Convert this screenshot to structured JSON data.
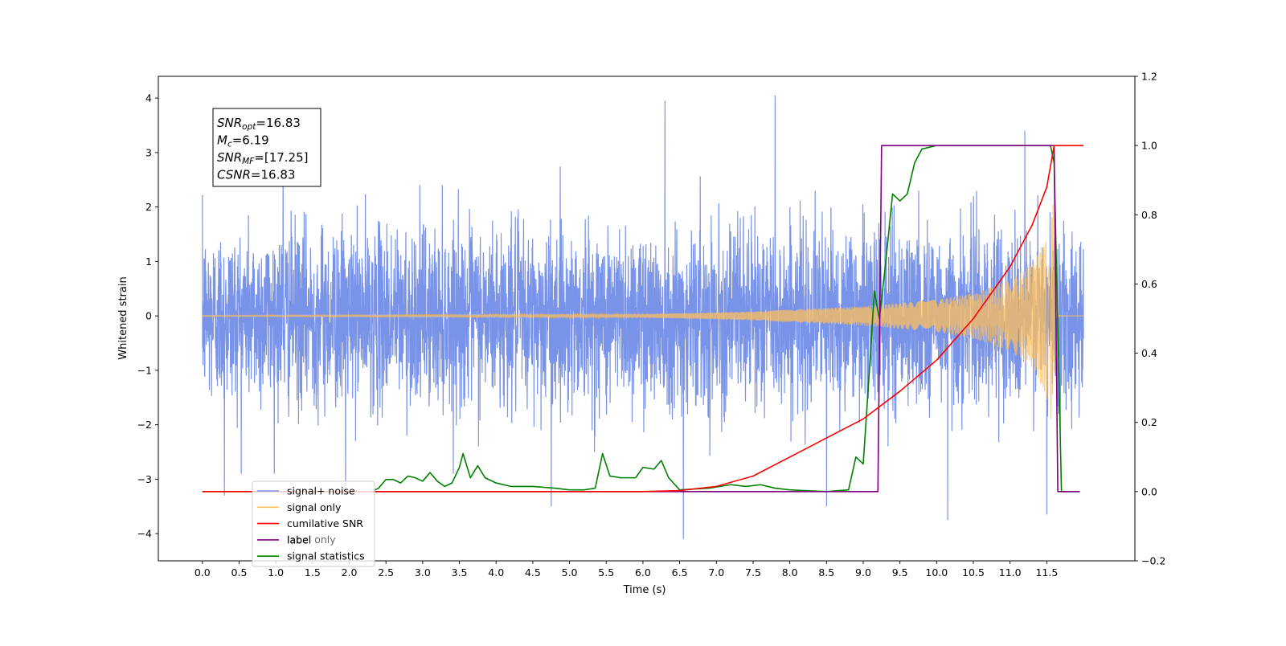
{
  "chart_data": {
    "type": "line",
    "xlabel": "Time (s)",
    "ylabel_left": "Whitened strain",
    "ylabel_right": "",
    "xlim": [
      -0.6,
      12.7
    ],
    "ylim_left": [
      -4.5,
      4.4
    ],
    "ylim_right": [
      -0.2,
      1.2
    ],
    "x_ticks": [
      0.0,
      0.5,
      1.0,
      1.5,
      2.0,
      2.5,
      3.0,
      3.5,
      4.0,
      4.5,
      5.0,
      5.5,
      6.0,
      6.5,
      7.0,
      7.5,
      8.0,
      8.5,
      9.0,
      9.5,
      10.0,
      10.5,
      11.0,
      11.5
    ],
    "x_tick_labels": [
      "0.0",
      "0.5",
      "1.0",
      "1.5",
      "2.0",
      "2.5",
      "3.0",
      "3.5",
      "4.0",
      "4.5",
      "5.0",
      "5.5",
      "6.0",
      "6.5",
      "7.0",
      "7.5",
      "8.0",
      "8.5",
      "9.0",
      "9.5",
      "10.0",
      "10.5",
      "11.0",
      "11.5"
    ],
    "y_left_ticks": [
      -4,
      -3,
      -2,
      -1,
      0,
      1,
      2,
      3,
      4
    ],
    "y_left_tick_labels": [
      "−4",
      "−3",
      "−2",
      "−1",
      "0",
      "1",
      "2",
      "3",
      "4"
    ],
    "y_right_ticks": [
      -0.2,
      0.0,
      0.2,
      0.4,
      0.6,
      0.8,
      1.0,
      1.2
    ],
    "y_right_tick_labels": [
      "−0.2",
      "0.0",
      "0.2",
      "0.4",
      "0.6",
      "0.8",
      "1.0",
      "1.2"
    ],
    "grid": false,
    "legend_placement": "lower-left",
    "annotation": {
      "lines": [
        {
          "base": "SNR",
          "sub": "opt",
          "rest": "=16.83"
        },
        {
          "base": "M",
          "sub": "c",
          "rest": "=6.19"
        },
        {
          "base": "SNR",
          "sub": "MF",
          "rest": "=[17.25]"
        },
        {
          "base": "CSNR",
          "sub": "",
          "rest": "=16.83"
        }
      ]
    },
    "series": [
      {
        "name": "signal+ noise",
        "axis": "left",
        "color": "#7893e8",
        "x_range": [
          0.0,
          12.0
        ],
        "noise_std": 0.8,
        "peak_values": [
          {
            "x": 0.3,
            "y": -3.3
          },
          {
            "x": 1.1,
            "y": 3.1
          },
          {
            "x": 1.95,
            "y": -3.2
          },
          {
            "x": 4.75,
            "y": -3.5
          },
          {
            "x": 6.3,
            "y": 3.95
          },
          {
            "x": 6.55,
            "y": -4.1
          },
          {
            "x": 7.8,
            "y": 4.05
          },
          {
            "x": 8.5,
            "y": -3.5
          },
          {
            "x": 10.15,
            "y": -3.75
          },
          {
            "x": 11.2,
            "y": 3.4
          },
          {
            "x": 11.5,
            "y": -3.65
          }
        ]
      },
      {
        "name": "signal only",
        "axis": "left",
        "color": "#ffbf59",
        "x_range": [
          0.0,
          12.0
        ],
        "merger_time": 11.63,
        "envelope": [
          {
            "x": 0.0,
            "y": 0.01
          },
          {
            "x": 6.0,
            "y": 0.03
          },
          {
            "x": 7.5,
            "y": 0.08
          },
          {
            "x": 9.0,
            "y": 0.18
          },
          {
            "x": 10.0,
            "y": 0.3
          },
          {
            "x": 10.5,
            "y": 0.42
          },
          {
            "x": 11.0,
            "y": 0.65
          },
          {
            "x": 11.3,
            "y": 0.95
          },
          {
            "x": 11.5,
            "y": 1.5
          },
          {
            "x": 11.58,
            "y": 2.1
          },
          {
            "x": 11.63,
            "y": 2.3
          }
        ]
      },
      {
        "name": "cumilative SNR",
        "axis": "right",
        "color": "#ff0000",
        "points": [
          {
            "x": 0.0,
            "y": 0.0
          },
          {
            "x": 6.0,
            "y": 0.0
          },
          {
            "x": 6.5,
            "y": 0.003
          },
          {
            "x": 7.0,
            "y": 0.015
          },
          {
            "x": 7.5,
            "y": 0.045
          },
          {
            "x": 8.0,
            "y": 0.1
          },
          {
            "x": 8.5,
            "y": 0.155
          },
          {
            "x": 9.0,
            "y": 0.21
          },
          {
            "x": 9.5,
            "y": 0.29
          },
          {
            "x": 10.0,
            "y": 0.38
          },
          {
            "x": 10.5,
            "y": 0.5
          },
          {
            "x": 11.0,
            "y": 0.65
          },
          {
            "x": 11.3,
            "y": 0.77
          },
          {
            "x": 11.5,
            "y": 0.88
          },
          {
            "x": 11.6,
            "y": 1.0
          },
          {
            "x": 11.7,
            "y": 1.0
          },
          {
            "x": 12.0,
            "y": 1.0
          }
        ]
      },
      {
        "name": "label",
        "axis": "right",
        "color": "#800080",
        "points": [
          {
            "x": 2.3,
            "y": 0.0
          },
          {
            "x": 9.2,
            "y": 0.0
          },
          {
            "x": 9.25,
            "y": 1.0
          },
          {
            "x": 11.6,
            "y": 1.0
          },
          {
            "x": 11.65,
            "y": 0.0
          },
          {
            "x": 11.95,
            "y": 0.0
          }
        ]
      },
      {
        "name": "signal statistics",
        "axis": "right",
        "color": "#008000",
        "points": [
          {
            "x": 0.0,
            "y": 0.0
          },
          {
            "x": 2.3,
            "y": 0.0
          },
          {
            "x": 2.4,
            "y": 0.01
          },
          {
            "x": 2.5,
            "y": 0.035
          },
          {
            "x": 2.6,
            "y": 0.035
          },
          {
            "x": 2.7,
            "y": 0.025
          },
          {
            "x": 2.8,
            "y": 0.045
          },
          {
            "x": 2.9,
            "y": 0.04
          },
          {
            "x": 3.0,
            "y": 0.03
          },
          {
            "x": 3.1,
            "y": 0.055
          },
          {
            "x": 3.2,
            "y": 0.03
          },
          {
            "x": 3.3,
            "y": 0.015
          },
          {
            "x": 3.4,
            "y": 0.025
          },
          {
            "x": 3.5,
            "y": 0.07
          },
          {
            "x": 3.55,
            "y": 0.11
          },
          {
            "x": 3.65,
            "y": 0.04
          },
          {
            "x": 3.75,
            "y": 0.075
          },
          {
            "x": 3.85,
            "y": 0.04
          },
          {
            "x": 4.0,
            "y": 0.025
          },
          {
            "x": 4.2,
            "y": 0.015
          },
          {
            "x": 4.5,
            "y": 0.015
          },
          {
            "x": 4.8,
            "y": 0.01
          },
          {
            "x": 5.0,
            "y": 0.005
          },
          {
            "x": 5.2,
            "y": 0.005
          },
          {
            "x": 5.35,
            "y": 0.01
          },
          {
            "x": 5.45,
            "y": 0.11
          },
          {
            "x": 5.55,
            "y": 0.045
          },
          {
            "x": 5.7,
            "y": 0.04
          },
          {
            "x": 5.9,
            "y": 0.04
          },
          {
            "x": 6.0,
            "y": 0.07
          },
          {
            "x": 6.15,
            "y": 0.065
          },
          {
            "x": 6.25,
            "y": 0.09
          },
          {
            "x": 6.35,
            "y": 0.04
          },
          {
            "x": 6.5,
            "y": 0.005
          },
          {
            "x": 6.9,
            "y": 0.01
          },
          {
            "x": 7.2,
            "y": 0.02
          },
          {
            "x": 7.4,
            "y": 0.015
          },
          {
            "x": 7.6,
            "y": 0.02
          },
          {
            "x": 7.8,
            "y": 0.01
          },
          {
            "x": 8.0,
            "y": 0.005
          },
          {
            "x": 8.5,
            "y": 0.0
          },
          {
            "x": 8.8,
            "y": 0.005
          },
          {
            "x": 8.9,
            "y": 0.1
          },
          {
            "x": 9.0,
            "y": 0.08
          },
          {
            "x": 9.1,
            "y": 0.4
          },
          {
            "x": 9.15,
            "y": 0.58
          },
          {
            "x": 9.22,
            "y": 0.5
          },
          {
            "x": 9.3,
            "y": 0.65
          },
          {
            "x": 9.4,
            "y": 0.86
          },
          {
            "x": 9.5,
            "y": 0.84
          },
          {
            "x": 9.6,
            "y": 0.86
          },
          {
            "x": 9.7,
            "y": 0.95
          },
          {
            "x": 9.8,
            "y": 0.99
          },
          {
            "x": 10.0,
            "y": 1.0
          },
          {
            "x": 11.55,
            "y": 1.0
          },
          {
            "x": 11.6,
            "y": 0.95
          },
          {
            "x": 11.7,
            "y": 0.0
          },
          {
            "x": 11.95,
            "y": 0.0
          }
        ]
      }
    ],
    "legend_hidden_text": "label only"
  }
}
